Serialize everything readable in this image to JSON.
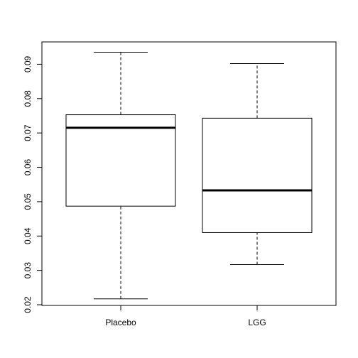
{
  "chart_data": {
    "type": "boxplot",
    "title": "",
    "xlabel": "",
    "ylabel": "",
    "ylim": [
      0.0198,
      0.0965
    ],
    "categories": [
      "Placebo",
      "LGG"
    ],
    "yticks": [
      0.02,
      0.03,
      0.04,
      0.05,
      0.06,
      0.07,
      0.08,
      0.09
    ],
    "ytick_labels": [
      "0.02",
      "0.03",
      "0.04",
      "0.05",
      "0.06",
      "0.07",
      "0.08",
      "0.09"
    ],
    "boxes": [
      {
        "name": "Placebo",
        "whisker_low": 0.0217,
        "q1": 0.0487,
        "median": 0.0715,
        "q3": 0.0753,
        "whisker_high": 0.0935
      },
      {
        "name": "LGG",
        "whisker_low": 0.0317,
        "q1": 0.041,
        "median": 0.0533,
        "q3": 0.0743,
        "whisker_high": 0.0902
      }
    ]
  }
}
